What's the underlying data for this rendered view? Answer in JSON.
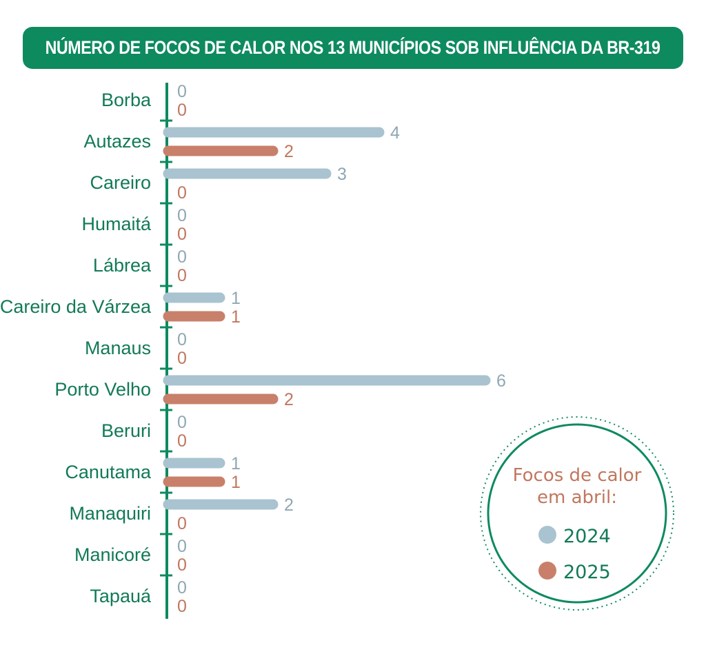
{
  "title": "NÚMERO DE FOCOS DE CALOR NOS 13 MUNICÍPIOS SOB INFLUÊNCIA DA BR-319",
  "colors": {
    "title_bg": "#0e8a5f",
    "axis": "#0e8a5f",
    "category_text": "#127a55",
    "series_2024": "#a9c3d0",
    "series_2025": "#c8806a",
    "label_2024": "#8fa7b4",
    "label_2025": "#c0775e"
  },
  "legend": {
    "heading_line1": "Focos de calor",
    "heading_line2": "em abril:",
    "items": [
      "2024",
      "2025"
    ]
  },
  "chart_data": {
    "type": "bar",
    "orientation": "horizontal",
    "title": "NÚMERO DE FOCOS DE CALOR NOS 13 MUNICÍPIOS SOB INFLUÊNCIA DA BR-319",
    "categories": [
      "Borba",
      "Autazes",
      "Careiro",
      "Humaitá",
      "Lábrea",
      "Careiro da Várzea",
      "Manaus",
      "Porto Velho",
      "Beruri",
      "Canutama",
      "Manaquiri",
      "Manicoré",
      "Tapauá"
    ],
    "series": [
      {
        "name": "2024",
        "values": [
          0,
          4,
          3,
          0,
          0,
          1,
          0,
          6,
          0,
          1,
          2,
          0,
          0
        ]
      },
      {
        "name": "2025",
        "values": [
          0,
          2,
          0,
          0,
          0,
          1,
          0,
          2,
          0,
          1,
          0,
          0,
          0
        ]
      }
    ],
    "xlim": [
      0,
      6
    ],
    "legend_position": "bottom-right",
    "grid": false
  }
}
